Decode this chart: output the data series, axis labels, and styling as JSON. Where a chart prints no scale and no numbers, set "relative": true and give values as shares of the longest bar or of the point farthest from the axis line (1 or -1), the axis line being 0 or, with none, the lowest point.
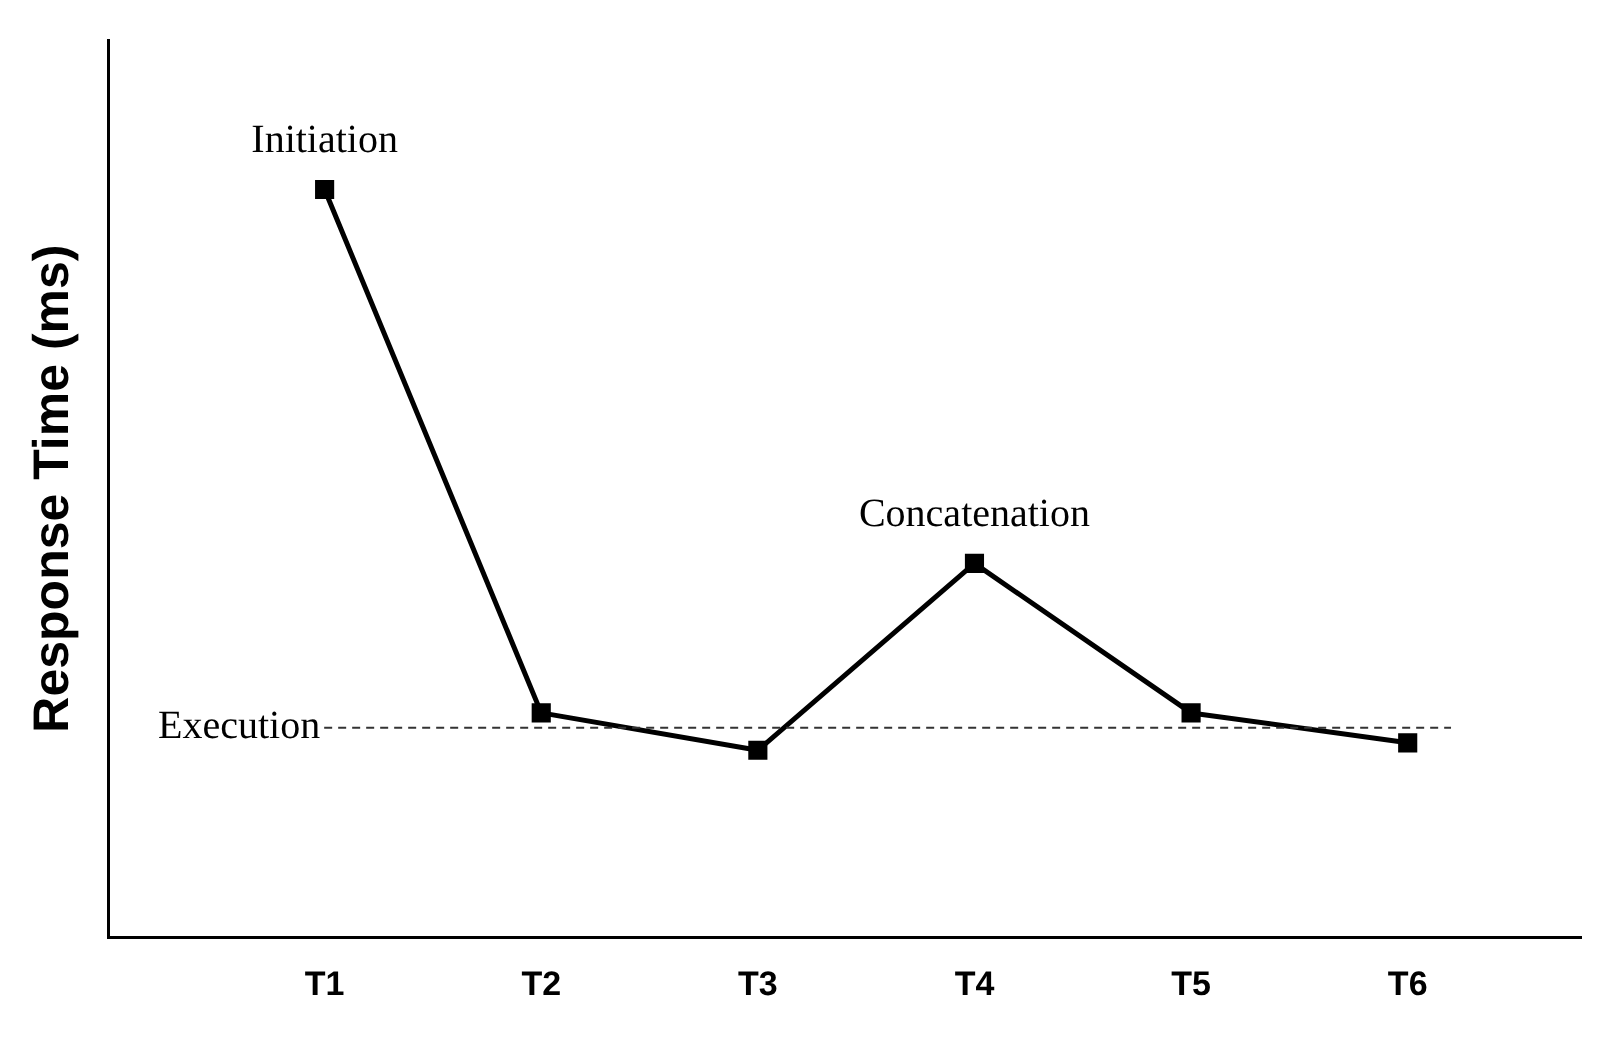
{
  "chart_data": {
    "type": "line",
    "relative": true,
    "ylabel": "Response Time (ms)",
    "categories": [
      "T1",
      "T2",
      "T3",
      "T4",
      "T5",
      "T6"
    ],
    "series": [
      {
        "color": "#000000",
        "values": [
          1,
          0.3,
          0.25,
          0.5,
          0.3,
          0.26
        ]
      }
    ],
    "marker": "square",
    "line_style": "solid",
    "grid": false,
    "legend": false,
    "annotations": [
      {
        "text": "Initiation",
        "x": "T1",
        "y": 1
      },
      {
        "text": "Concatenation",
        "x": "T4",
        "y": 0.5
      }
    ],
    "ref_lines": [
      {
        "axis": "y",
        "value": 0.28,
        "label": "Execution",
        "line_style": "dashed",
        "color": "#333333"
      }
    ]
  }
}
